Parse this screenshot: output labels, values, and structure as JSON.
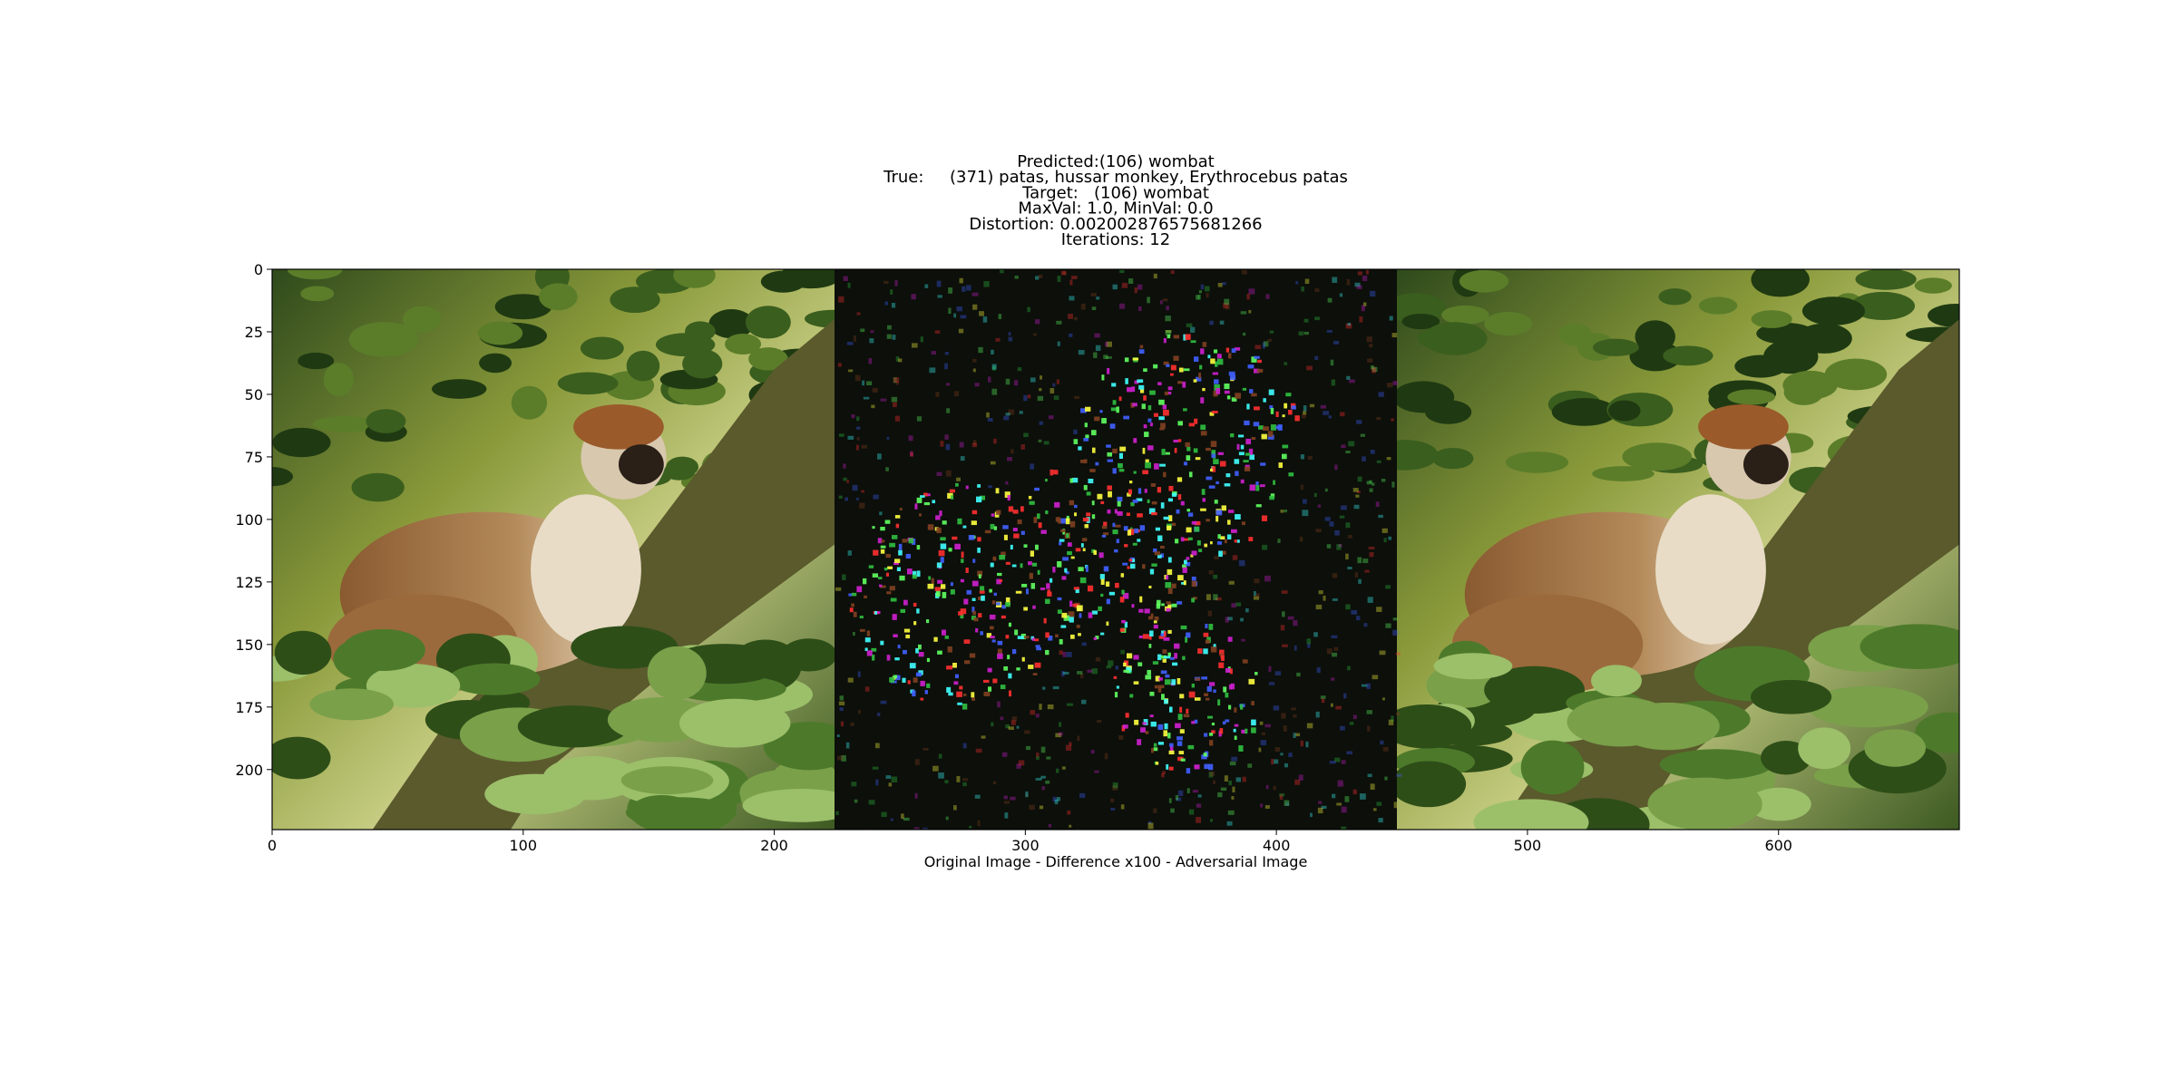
{
  "chart_data": {
    "type": "image",
    "title": [
      "Predicted:(106) wombat",
      "True:     (371) patas, hussar monkey, Erythrocebus patas",
      "Target:   (106) wombat",
      "MaxVal: 1.0, MinVal: 0.0",
      "Distortion: 0.002002876575681266",
      "Iterations: 12"
    ],
    "xlabel": "Original Image - Difference x100 - Adversarial Image",
    "xlim": [
      0,
      672
    ],
    "ylim": [
      224,
      0
    ],
    "xticks": [
      0,
      100,
      200,
      300,
      400,
      500,
      600
    ],
    "yticks": [
      0,
      25,
      50,
      75,
      100,
      125,
      150,
      175,
      200
    ]
  }
}
